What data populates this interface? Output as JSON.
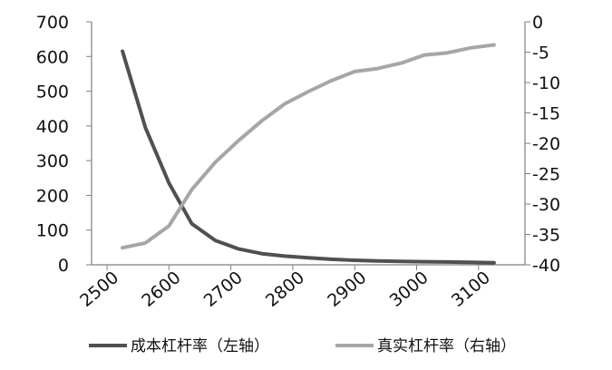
{
  "chart_data": {
    "type": "line",
    "title": "",
    "xlabel": "",
    "ylabel": "",
    "x": [
      2525,
      2562,
      2600,
      2637,
      2675,
      2712,
      2750,
      2787,
      2825,
      2862,
      2900,
      2937,
      2975,
      3012,
      3050,
      3087,
      3125
    ],
    "xlim": [
      2475,
      3175
    ],
    "x_ticks": [
      2500,
      2600,
      2700,
      2800,
      2900,
      3000,
      3100
    ],
    "x_tick_labels": [
      "2500",
      "2600",
      "2700",
      "2800",
      "2900",
      "3000",
      "3100"
    ],
    "ylim_left": [
      0,
      700
    ],
    "y_ticks_left": [
      0,
      100,
      200,
      300,
      400,
      500,
      600,
      700
    ],
    "y_tick_labels_left": [
      "0",
      "100",
      "200",
      "300",
      "400",
      "500",
      "600",
      "700"
    ],
    "ylim_right": [
      -40,
      0
    ],
    "y_ticks_right": [
      -40,
      -35,
      -30,
      -25,
      -20,
      -15,
      -10,
      -5,
      0
    ],
    "y_tick_labels_right": [
      "-40",
      "-35",
      "-30",
      "-25",
      "-20",
      "-15",
      "-10",
      "-5",
      "0"
    ],
    "grid": false,
    "legend_position": "bottom",
    "series": [
      {
        "name": "成本杠杆率（左轴）",
        "axis": "left",
        "color": "#505050",
        "values": [
          615,
          395,
          235,
          118,
          70,
          46,
          32,
          25,
          20,
          16,
          13,
          11,
          10,
          9,
          8,
          7,
          6
        ]
      },
      {
        "name": "真实杠杆率（右轴）",
        "axis": "right",
        "color": "#a6a6a6",
        "values": [
          -37.2,
          -36.4,
          -33.6,
          -27.6,
          -23.1,
          -19.6,
          -16.3,
          -13.5,
          -11.5,
          -9.7,
          -8.2,
          -7.7,
          -6.8,
          -5.5,
          -5.1,
          -4.3,
          -3.8
        ]
      }
    ]
  }
}
